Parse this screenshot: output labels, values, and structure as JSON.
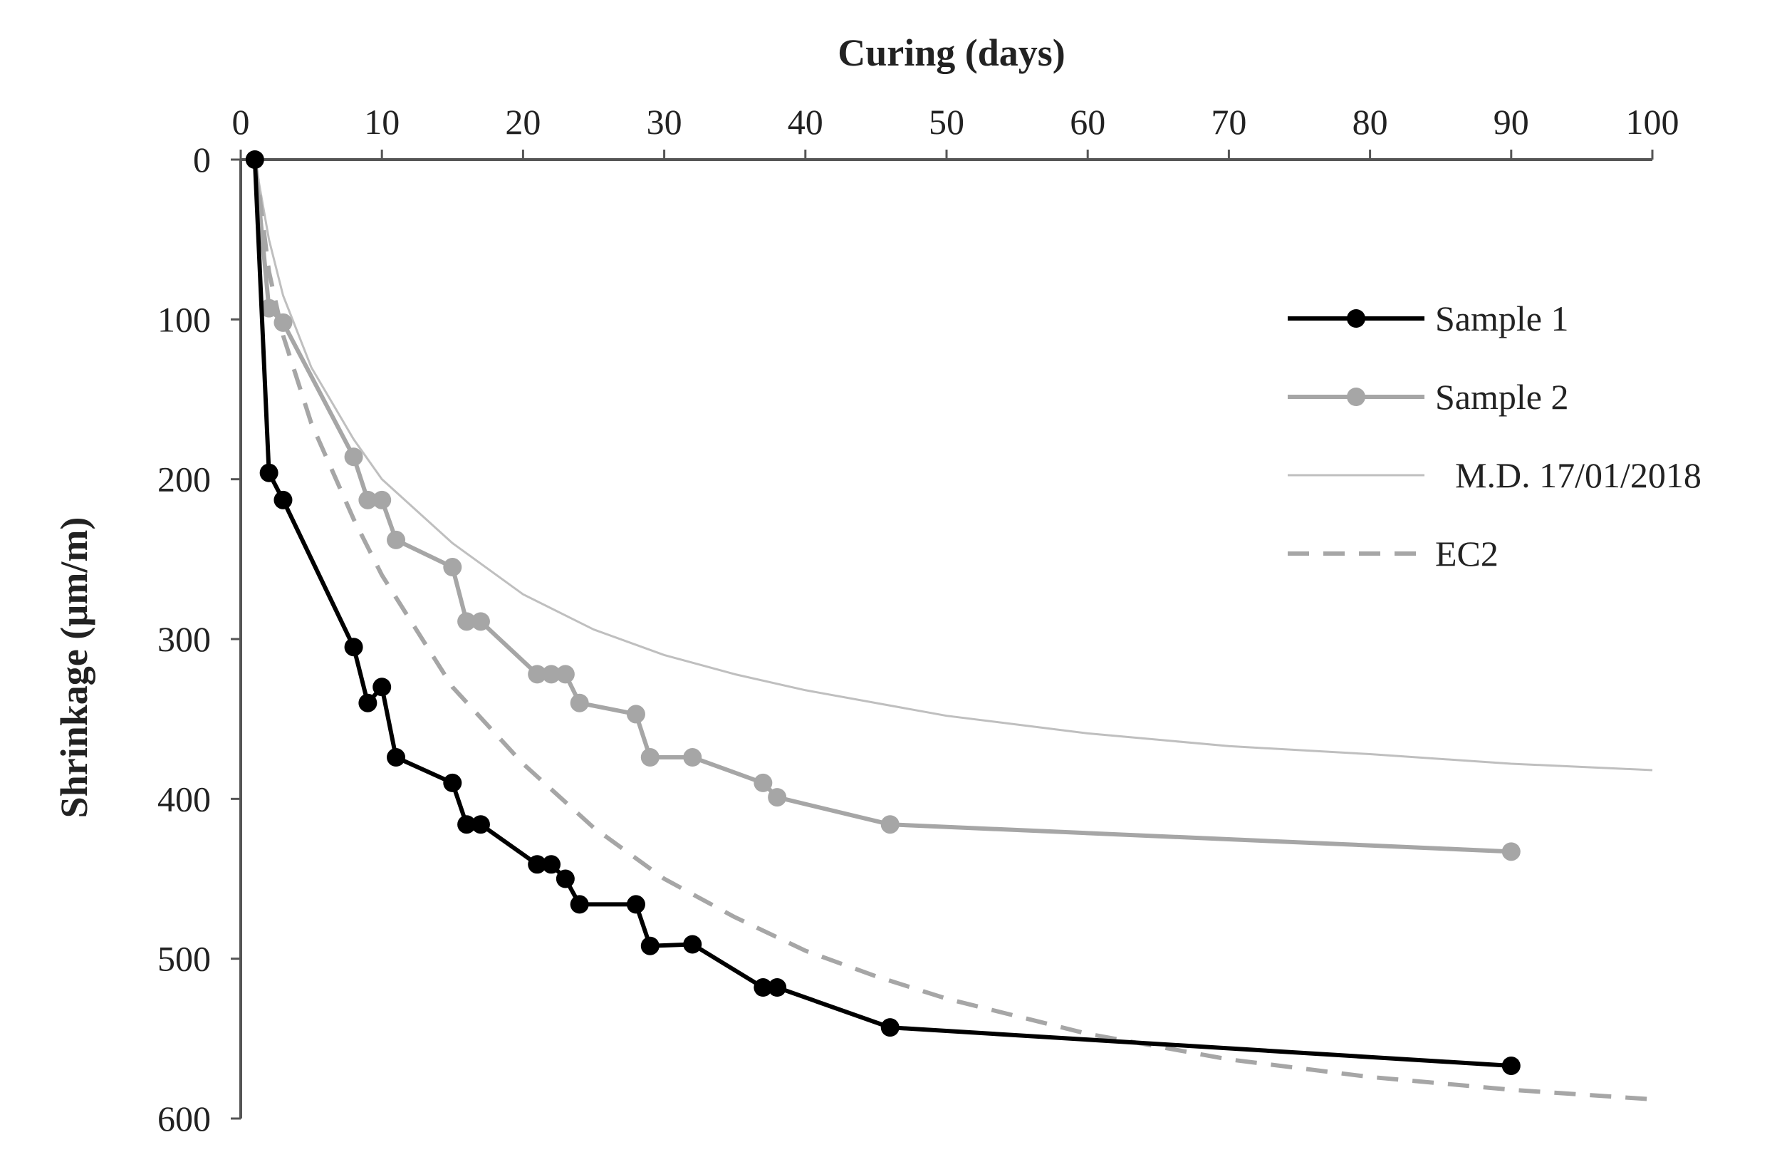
{
  "chart_data": {
    "type": "line",
    "title": "",
    "xlabel": "Curing (days)",
    "ylabel": "Shrinkage (µm/m)",
    "xlim": [
      0,
      100
    ],
    "ylim": [
      0,
      600
    ],
    "x_axis_position": "top",
    "y_axis_inverted": true,
    "grid": false,
    "legend_position": "right",
    "xticks": [
      0,
      10,
      20,
      30,
      40,
      50,
      60,
      70,
      80,
      90,
      100
    ],
    "yticks": [
      0,
      100,
      200,
      300,
      400,
      500,
      600
    ],
    "series": [
      {
        "name": "Sample 1",
        "style": "solid-markers",
        "color": "#000000",
        "x": [
          1,
          2,
          3,
          8,
          9,
          10,
          11,
          15,
          16,
          17,
          21,
          22,
          23,
          24,
          28,
          29,
          32,
          37,
          38,
          46,
          90
        ],
        "y": [
          0,
          196,
          213,
          305,
          340,
          330,
          374,
          390,
          416,
          416,
          441,
          441,
          450,
          466,
          466,
          492,
          491,
          518,
          518,
          543,
          567
        ]
      },
      {
        "name": "Sample 2",
        "style": "solid-markers",
        "color": "#a6a6a6",
        "x": [
          1,
          2,
          3,
          8,
          9,
          10,
          11,
          15,
          16,
          17,
          21,
          22,
          23,
          24,
          28,
          29,
          32,
          37,
          38,
          46,
          90
        ],
        "y": [
          0,
          93,
          102,
          186,
          213,
          213,
          238,
          255,
          289,
          289,
          322,
          322,
          322,
          340,
          347,
          374,
          374,
          390,
          399,
          416,
          433
        ]
      },
      {
        "name": "M.D. 17/01/2018",
        "style": "thin-line",
        "color": "#bfbfbf",
        "x": [
          1,
          2,
          3,
          5,
          8,
          10,
          15,
          20,
          25,
          30,
          35,
          40,
          50,
          60,
          70,
          80,
          90,
          100
        ],
        "y": [
          0,
          50,
          85,
          130,
          175,
          200,
          240,
          272,
          294,
          310,
          322,
          332,
          348,
          359,
          367,
          372,
          378,
          382
        ]
      },
      {
        "name": "EC2",
        "style": "dashed",
        "color": "#a6a6a6",
        "x": [
          1,
          2,
          3,
          5,
          8,
          10,
          15,
          20,
          25,
          30,
          35,
          40,
          45,
          50,
          60,
          70,
          80,
          90,
          100
        ],
        "y": [
          0,
          70,
          110,
          165,
          225,
          260,
          330,
          378,
          418,
          450,
          474,
          495,
          511,
          525,
          547,
          563,
          574,
          582,
          588
        ]
      }
    ]
  }
}
